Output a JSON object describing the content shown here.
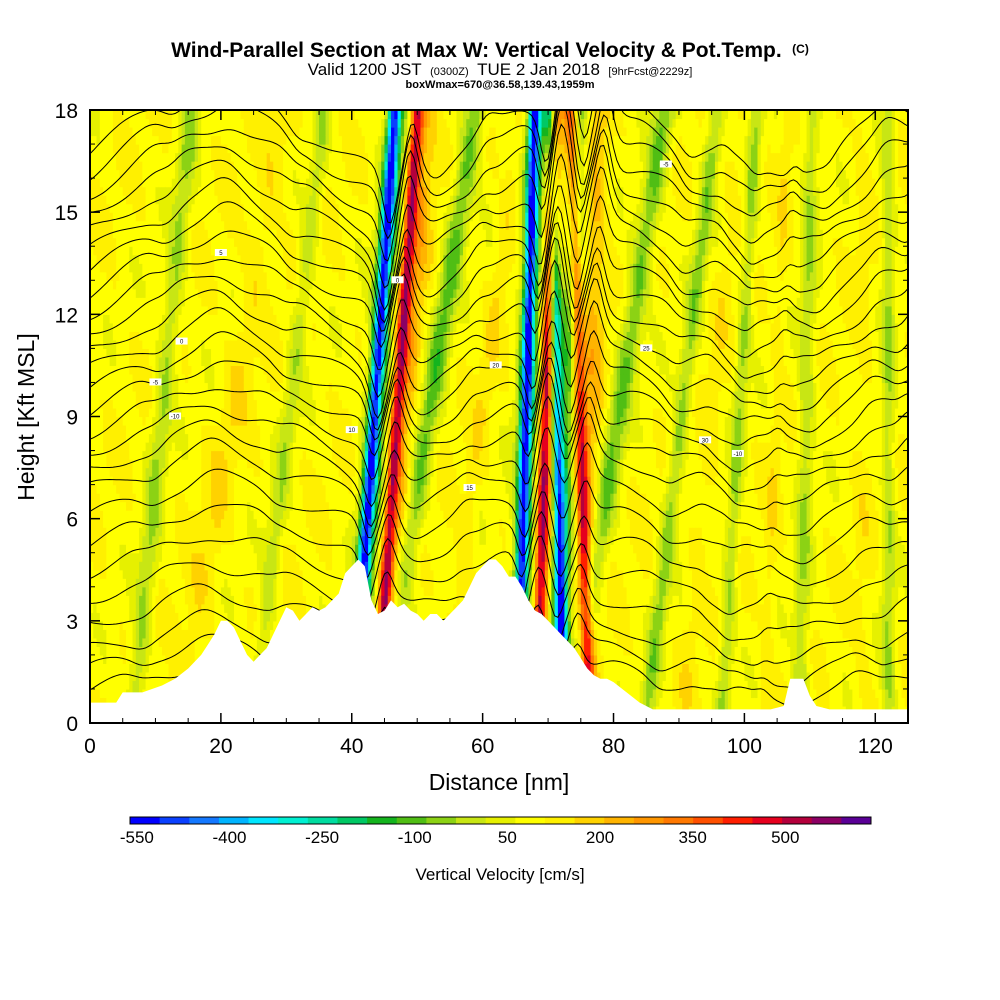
{
  "title": {
    "main": "Wind-Parallel Section at Max W: Vertical Velocity & Pot.Temp.",
    "main_suffix": "(C)",
    "valid_a": "Valid 1200 JST",
    "valid_b": "(0300Z)",
    "valid_c": "TUE 2 Jan 2018",
    "valid_d": "[9hrFcst@2229z]",
    "box": "boxWmax=670@36.58,139.43,1959m"
  },
  "chart_data": {
    "type": "heatmap",
    "xlabel": "Distance [nm]",
    "ylabel": "Height [Kft MSL]",
    "xlim": [
      0,
      125
    ],
    "ylim": [
      0,
      18
    ],
    "x_ticks": [
      0,
      20,
      40,
      60,
      80,
      100,
      120
    ],
    "y_ticks": [
      0,
      3,
      6,
      9,
      12,
      15,
      18
    ],
    "colorbar": {
      "label": "Vertical Velocity [cm/s]",
      "range": [
        -600,
        600
      ],
      "tick_values": [
        -550,
        -400,
        -250,
        -100,
        50,
        200,
        350,
        500
      ],
      "colors": [
        "#0000ff",
        "#0a40ff",
        "#1478ff",
        "#00b4ff",
        "#00e6ff",
        "#00f0d2",
        "#00dca0",
        "#00c864",
        "#14b41e",
        "#50be14",
        "#8cd214",
        "#c8e614",
        "#e6f000",
        "#ffff00",
        "#fff000",
        "#ffd200",
        "#ffb400",
        "#ff9600",
        "#ff7800",
        "#ff5000",
        "#ff1e00",
        "#e6001e",
        "#b4003c",
        "#8c0064",
        "#5a0096"
      ]
    },
    "terrain_kft": [
      [
        0,
        0.6
      ],
      [
        2,
        0.6
      ],
      [
        4,
        0.6
      ],
      [
        5,
        0.9
      ],
      [
        8,
        0.9
      ],
      [
        11,
        1.1
      ],
      [
        13,
        1.3
      ],
      [
        15,
        1.6
      ],
      [
        17,
        2.0
      ],
      [
        18,
        2.3
      ],
      [
        19,
        2.6
      ],
      [
        20,
        3.0
      ],
      [
        21,
        3.0
      ],
      [
        22,
        2.8
      ],
      [
        23,
        2.4
      ],
      [
        24,
        2.0
      ],
      [
        25,
        1.8
      ],
      [
        26,
        2.0
      ],
      [
        27,
        2.2
      ],
      [
        28,
        2.6
      ],
      [
        29,
        3.0
      ],
      [
        30,
        3.4
      ],
      [
        31,
        3.3
      ],
      [
        32,
        3.0
      ],
      [
        33,
        3.2
      ],
      [
        34,
        3.4
      ],
      [
        35,
        3.3
      ],
      [
        36,
        3.4
      ],
      [
        37,
        3.6
      ],
      [
        38,
        3.8
      ],
      [
        39,
        4.4
      ],
      [
        40,
        4.6
      ],
      [
        41,
        4.8
      ],
      [
        42,
        4.6
      ],
      [
        43,
        3.6
      ],
      [
        44,
        3.2
      ],
      [
        45,
        3.3
      ],
      [
        46,
        3.6
      ],
      [
        47,
        3.4
      ],
      [
        48,
        3.5
      ],
      [
        49,
        3.3
      ],
      [
        50,
        3.2
      ],
      [
        51,
        3.0
      ],
      [
        52,
        3.2
      ],
      [
        53,
        3.2
      ],
      [
        54,
        3.0
      ],
      [
        55,
        3.2
      ],
      [
        56,
        3.4
      ],
      [
        57,
        3.6
      ],
      [
        58,
        4.0
      ],
      [
        59,
        4.4
      ],
      [
        60,
        4.6
      ],
      [
        61,
        4.8
      ],
      [
        62,
        4.8
      ],
      [
        63,
        4.6
      ],
      [
        64,
        4.3
      ],
      [
        65,
        4.3
      ],
      [
        66,
        4.0
      ],
      [
        67,
        3.6
      ],
      [
        68,
        3.3
      ],
      [
        69,
        3.2
      ],
      [
        70,
        3.0
      ],
      [
        71,
        2.8
      ],
      [
        72,
        2.6
      ],
      [
        73,
        2.4
      ],
      [
        74,
        2.2
      ],
      [
        75,
        1.9
      ],
      [
        76,
        1.6
      ],
      [
        77,
        1.4
      ],
      [
        78,
        1.3
      ],
      [
        79,
        1.3
      ],
      [
        80,
        1.2
      ],
      [
        82,
        0.9
      ],
      [
        84,
        0.6
      ],
      [
        86,
        0.4
      ],
      [
        88,
        0.4
      ],
      [
        100,
        0.4
      ],
      [
        104,
        0.4
      ],
      [
        106,
        0.5
      ],
      [
        107,
        1.3
      ],
      [
        109,
        1.3
      ],
      [
        110,
        0.8
      ],
      [
        111,
        0.5
      ],
      [
        113,
        0.4
      ],
      [
        125,
        0.4
      ]
    ],
    "vertical_velocity_bands": [
      {
        "x_at_5kft": 42.0,
        "slope_nm_per_kft": 0.35,
        "width_nm": 2.2,
        "value": -450
      },
      {
        "x_at_5kft": 42.5,
        "slope_nm_per_kft": 0.35,
        "width_nm": 4.5,
        "value": -180
      },
      {
        "x_at_5kft": 45.5,
        "slope_nm_per_kft": 0.35,
        "width_nm": 2.2,
        "value": 450
      },
      {
        "x_at_5kft": 46.5,
        "slope_nm_per_kft": 0.35,
        "width_nm": 5.0,
        "value": 220
      },
      {
        "x_at_5kft": 48.5,
        "slope_nm_per_kft": 0.8,
        "width_nm": 4.0,
        "value": -160
      },
      {
        "x_at_5kft": 57.0,
        "slope_nm_per_kft": 0.7,
        "width_nm": 3.0,
        "value": 120
      },
      {
        "x_at_5kft": 66.0,
        "slope_nm_per_kft": 0.15,
        "width_nm": 2.0,
        "value": -450
      },
      {
        "x_at_5kft": 66.5,
        "slope_nm_per_kft": 0.15,
        "width_nm": 4.5,
        "value": -200
      },
      {
        "x_at_5kft": 69.0,
        "slope_nm_per_kft": 0.15,
        "width_nm": 2.2,
        "value": 480
      },
      {
        "x_at_5kft": 70.0,
        "slope_nm_per_kft": 0.15,
        "width_nm": 5.0,
        "value": 220
      },
      {
        "x_at_5kft": 71.8,
        "slope_nm_per_kft": -0.1,
        "width_nm": 2.2,
        "value": -470
      },
      {
        "x_at_5kft": 72.0,
        "slope_nm_per_kft": 0.2,
        "width_nm": 4.5,
        "value": -220
      },
      {
        "x_at_5kft": 75.5,
        "slope_nm_per_kft": -0.15,
        "width_nm": 2.2,
        "value": 450
      },
      {
        "x_at_5kft": 76.0,
        "slope_nm_per_kft": 0.1,
        "width_nm": 4.5,
        "value": 200
      },
      {
        "x_at_5kft": 77.5,
        "slope_nm_per_kft": 0.8,
        "width_nm": 4.0,
        "value": -150
      },
      {
        "x_at_5kft": 18.0,
        "slope_nm_per_kft": 0.9,
        "width_nm": 5.0,
        "value": 120
      },
      {
        "x_at_5kft": 9.0,
        "slope_nm_per_kft": 0.5,
        "width_nm": 3.5,
        "value": -90
      },
      {
        "x_at_5kft": 28.0,
        "slope_nm_per_kft": 0.6,
        "width_nm": 3.0,
        "value": -70
      },
      {
        "x_at_5kft": 88.0,
        "slope_nm_per_kft": 0.6,
        "width_nm": 3.0,
        "value": -110
      },
      {
        "x_at_5kft": 93.0,
        "slope_nm_per_kft": 0.5,
        "width_nm": 3.0,
        "value": 100
      },
      {
        "x_at_5kft": 98.0,
        "slope_nm_per_kft": 0.3,
        "width_nm": 2.5,
        "value": -90
      },
      {
        "x_at_5kft": 104.0,
        "slope_nm_per_kft": 0.2,
        "width_nm": 2.0,
        "value": 110
      },
      {
        "x_at_5kft": 109.0,
        "slope_nm_per_kft": 0.1,
        "width_nm": 3.0,
        "value": -80
      },
      {
        "x_at_5kft": 118.0,
        "slope_nm_per_kft": 0.0,
        "width_nm": 3.0,
        "value": 90
      },
      {
        "x_at_5kft": 122.0,
        "slope_nm_per_kft": 0.0,
        "width_nm": 2.5,
        "value": -80
      }
    ],
    "background_velocity": 60,
    "potential_temperature": {
      "contour_heights_at_left_kft": [
        1.2,
        1.8,
        2.4,
        3.2,
        4.0,
        4.8,
        5.6,
        6.4,
        7.2,
        7.8,
        8.4,
        9.0,
        9.6,
        10.2,
        10.8,
        11.4,
        12.0,
        12.6,
        13.2,
        13.8,
        14.4,
        15.0,
        15.6,
        16.2,
        16.8,
        17.4
      ],
      "labels": [
        "-10",
        "-5",
        "0",
        "5",
        "10",
        "15",
        "20",
        "25",
        "30"
      ]
    }
  }
}
